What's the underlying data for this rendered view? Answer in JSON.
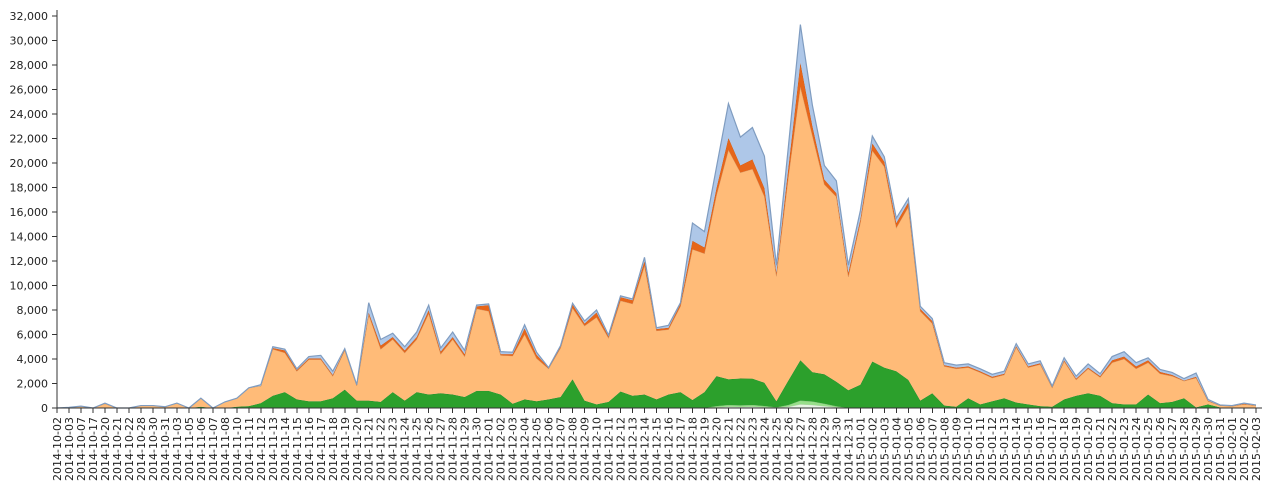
{
  "chart_data": {
    "type": "area",
    "stacked": true,
    "ylim": [
      0,
      32000
    ],
    "y_ticks": [
      0,
      2000,
      4000,
      6000,
      8000,
      10000,
      12000,
      14000,
      16000,
      18000,
      20000,
      22000,
      24000,
      26000,
      28000,
      30000,
      32000
    ],
    "y_tick_labels": [
      "0",
      "2,000",
      "4,000",
      "6,000",
      "8,000",
      "10,000",
      "12,000",
      "14,000",
      "16,000",
      "18,000",
      "20,000",
      "22,000",
      "24,000",
      "26,000",
      "28,000",
      "30,000",
      "32,000"
    ],
    "grid": false,
    "legend": "none",
    "x": [
      "2014-10-02",
      "2014-10-03",
      "2014-10-07",
      "2014-10-17",
      "2014-10-20",
      "2014-10-21",
      "2014-10-22",
      "2014-10-28",
      "2014-10-30",
      "2014-10-31",
      "2014-11-03",
      "2014-11-05",
      "2014-11-06",
      "2014-11-07",
      "2014-11-08",
      "2014-11-10",
      "2014-11-11",
      "2014-11-12",
      "2014-11-13",
      "2014-11-14",
      "2014-11-15",
      "2014-11-16",
      "2014-11-17",
      "2014-11-18",
      "2014-11-19",
      "2014-11-20",
      "2014-11-21",
      "2014-11-22",
      "2014-11-23",
      "2014-11-24",
      "2014-11-25",
      "2014-11-26",
      "2014-11-27",
      "2014-11-28",
      "2014-11-29",
      "2014-11-30",
      "2014-12-01",
      "2014-12-02",
      "2014-12-03",
      "2014-12-04",
      "2014-12-05",
      "2014-12-06",
      "2014-12-07",
      "2014-12-08",
      "2014-12-09",
      "2014-12-10",
      "2014-12-11",
      "2014-12-12",
      "2014-12-13",
      "2014-12-14",
      "2014-12-15",
      "2014-12-16",
      "2014-12-17",
      "2014-12-18",
      "2014-12-19",
      "2014-12-20",
      "2014-12-21",
      "2014-12-22",
      "2014-12-23",
      "2014-12-24",
      "2014-12-25",
      "2014-12-26",
      "2014-12-27",
      "2014-12-28",
      "2014-12-29",
      "2014-12-30",
      "2014-12-31",
      "2015-01-01",
      "2015-01-02",
      "2015-01-03",
      "2015-01-04",
      "2015-01-05",
      "2015-01-06",
      "2015-01-07",
      "2015-01-08",
      "2015-01-09",
      "2015-01-10",
      "2015-01-11",
      "2015-01-12",
      "2015-01-13",
      "2015-01-14",
      "2015-01-15",
      "2015-01-16",
      "2015-01-17",
      "2015-01-18",
      "2015-01-19",
      "2015-01-20",
      "2015-01-21",
      "2015-01-22",
      "2015-01-23",
      "2015-01-24",
      "2015-01-25",
      "2015-01-26",
      "2015-01-27",
      "2015-01-28",
      "2015-01-29",
      "2015-01-30",
      "2015-01-31",
      "2015-02-01",
      "2015-02-02",
      "2015-02-03"
    ],
    "series": [
      {
        "color": "#e8f5e4",
        "values": [
          0,
          0,
          0,
          0,
          0,
          0,
          0,
          0,
          0,
          0,
          0,
          0,
          0,
          0,
          0,
          0,
          0,
          0,
          0,
          0,
          0,
          0,
          0,
          0,
          0,
          0,
          0,
          0,
          0,
          0,
          0,
          0,
          0,
          0,
          0,
          0,
          0,
          0,
          0,
          0,
          0,
          0,
          0,
          0,
          0,
          0,
          0,
          0,
          0,
          0,
          0,
          0,
          0,
          0,
          0,
          50,
          100,
          80,
          100,
          60,
          20,
          100,
          300,
          250,
          150,
          60,
          0,
          0,
          0,
          0,
          0,
          0,
          0,
          0,
          0,
          0,
          0,
          0,
          0,
          0,
          0,
          0,
          0,
          0,
          0,
          0,
          0,
          0,
          0,
          0,
          0,
          0,
          0,
          0,
          0,
          0,
          0,
          0,
          0,
          0,
          0
        ]
      },
      {
        "color": "#98df8a",
        "values": [
          0,
          0,
          0,
          0,
          0,
          0,
          0,
          0,
          0,
          0,
          0,
          0,
          0,
          0,
          0,
          0,
          0,
          0,
          0,
          0,
          0,
          0,
          0,
          0,
          0,
          0,
          0,
          0,
          0,
          0,
          0,
          0,
          0,
          0,
          0,
          0,
          0,
          0,
          0,
          0,
          0,
          0,
          0,
          0,
          0,
          0,
          0,
          0,
          0,
          0,
          0,
          0,
          0,
          0,
          0,
          100,
          150,
          130,
          150,
          100,
          30,
          150,
          300,
          280,
          200,
          80,
          0,
          0,
          0,
          0,
          0,
          0,
          0,
          0,
          0,
          0,
          0,
          0,
          0,
          0,
          0,
          0,
          0,
          0,
          0,
          0,
          0,
          0,
          0,
          0,
          0,
          0,
          0,
          0,
          0,
          0,
          0,
          0,
          0,
          0,
          0
        ]
      },
      {
        "color": "#2ca02c",
        "values": [
          0,
          0,
          50,
          0,
          50,
          0,
          0,
          0,
          0,
          0,
          0,
          0,
          100,
          0,
          0,
          100,
          150,
          400,
          1000,
          1300,
          700,
          550,
          550,
          800,
          1500,
          600,
          600,
          500,
          1300,
          600,
          1300,
          1100,
          1200,
          1100,
          900,
          1400,
          1400,
          1100,
          350,
          700,
          550,
          700,
          900,
          2350,
          600,
          300,
          500,
          1350,
          1000,
          1100,
          700,
          1100,
          1300,
          650,
          1300,
          2450,
          2100,
          2200,
          2150,
          1900,
          500,
          2000,
          3300,
          2400,
          2400,
          2000,
          1450,
          1900,
          3800,
          3300,
          3000,
          2300,
          600,
          1200,
          200,
          100,
          800,
          300,
          550,
          800,
          450,
          300,
          150,
          100,
          700,
          1000,
          1200,
          1000,
          400,
          300,
          300,
          1100,
          400,
          500,
          800,
          50,
          300,
          50,
          0,
          0,
          0
        ]
      },
      {
        "color": "#ffbb78",
        "values": [
          0,
          50,
          100,
          0,
          300,
          0,
          0,
          200,
          200,
          100,
          400,
          0,
          700,
          0,
          500,
          700,
          1500,
          1400,
          3800,
          3200,
          2300,
          3400,
          3400,
          1800,
          3200,
          1200,
          7000,
          4300,
          4300,
          3900,
          4300,
          6600,
          3200,
          4500,
          3300,
          6700,
          6500,
          3200,
          3900,
          5300,
          3500,
          2500,
          4000,
          5800,
          6100,
          7100,
          5200,
          7400,
          7500,
          10500,
          5600,
          5300,
          7000,
          12300,
          11300,
          14750,
          18700,
          16800,
          17100,
          15200,
          10200,
          16600,
          22300,
          19300,
          15500,
          15100,
          9250,
          13200,
          17200,
          16400,
          11700,
          14100,
          7300,
          5700,
          3200,
          3100,
          2500,
          2600,
          1900,
          1900,
          4500,
          3000,
          3400,
          1550,
          3100,
          1300,
          2000,
          1500,
          3300,
          3700,
          2900,
          2600,
          2400,
          2100,
          1400,
          2400,
          250,
          150,
          150,
          300,
          200
        ]
      },
      {
        "color": "#e6661a",
        "values": [
          0,
          0,
          0,
          0,
          0,
          0,
          0,
          0,
          0,
          0,
          0,
          0,
          0,
          0,
          0,
          0,
          0,
          0,
          100,
          200,
          100,
          100,
          100,
          100,
          100,
          100,
          200,
          300,
          200,
          200,
          200,
          300,
          200,
          200,
          200,
          200,
          500,
          100,
          150,
          500,
          300,
          100,
          100,
          300,
          200,
          400,
          150,
          300,
          300,
          400,
          150,
          150,
          200,
          700,
          500,
          600,
          1000,
          600,
          800,
          700,
          300,
          800,
          2000,
          800,
          400,
          300,
          350,
          300,
          600,
          400,
          400,
          400,
          200,
          200,
          100,
          100,
          100,
          100,
          100,
          100,
          100,
          100,
          100,
          50,
          100,
          100,
          100,
          100,
          200,
          200,
          200,
          200,
          150,
          100,
          50,
          100,
          50,
          0,
          0,
          50,
          0
        ]
      },
      {
        "color": "#aec7e8",
        "values": [
          0,
          0,
          0,
          0,
          50,
          0,
          0,
          0,
          0,
          0,
          0,
          0,
          0,
          0,
          0,
          0,
          0,
          100,
          100,
          100,
          100,
          150,
          250,
          300,
          50,
          0,
          800,
          500,
          300,
          300,
          400,
          400,
          300,
          400,
          300,
          100,
          100,
          200,
          150,
          300,
          200,
          0,
          100,
          100,
          200,
          200,
          100,
          100,
          100,
          300,
          100,
          200,
          100,
          1450,
          1300,
          1700,
          2800,
          2300,
          2600,
          2600,
          600,
          1700,
          3100,
          1700,
          1150,
          1000,
          600,
          700,
          600,
          400,
          400,
          300,
          200,
          200,
          200,
          200,
          200,
          200,
          200,
          200,
          200,
          200,
          200,
          100,
          200,
          200,
          300,
          200,
          300,
          400,
          300,
          200,
          200,
          200,
          150,
          300,
          100,
          50,
          50,
          50,
          50
        ]
      }
    ]
  }
}
